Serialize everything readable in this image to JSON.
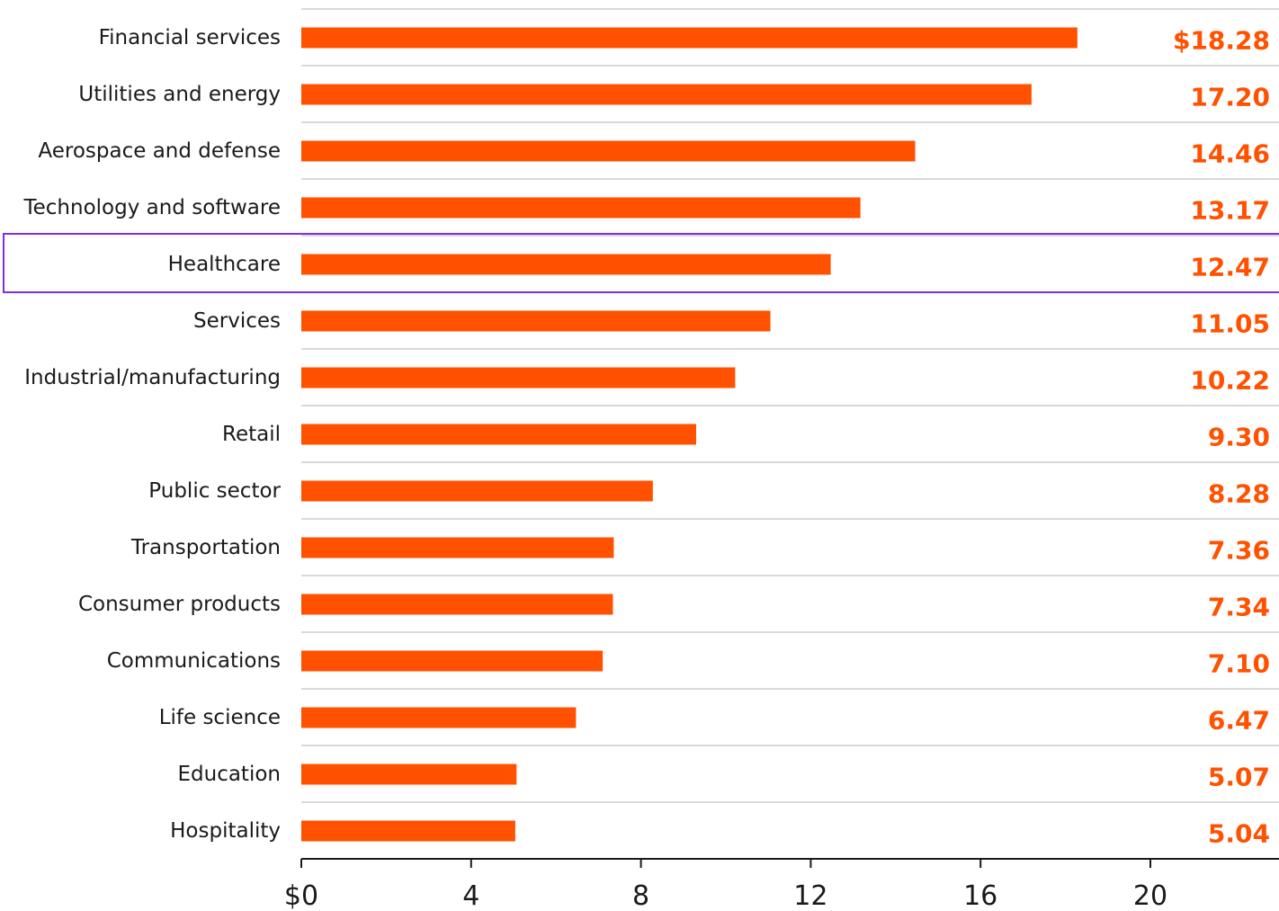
{
  "chart_data": {
    "type": "bar",
    "orientation": "horizontal",
    "categories": [
      "Financial services",
      "Utilities and energy",
      "Aerospace and defense",
      "Technology and software",
      "Healthcare",
      "Services",
      "Industrial/manufacturing",
      "Retail",
      "Public sector",
      "Transportation",
      "Consumer products",
      "Communications",
      "Life science",
      "Education",
      "Hospitality"
    ],
    "values": [
      18.28,
      17.2,
      14.46,
      13.17,
      12.47,
      11.05,
      10.22,
      9.3,
      8.28,
      7.36,
      7.34,
      7.1,
      6.47,
      5.07,
      5.04
    ],
    "value_labels": [
      "$18.28",
      "17.20",
      "14.46",
      "13.17",
      "12.47",
      "11.05",
      "10.22",
      "9.30",
      "8.28",
      "7.36",
      "7.34",
      "7.10",
      "6.47",
      "5.07",
      "5.04"
    ],
    "x_ticks": [
      0,
      4,
      8,
      12,
      16,
      20
    ],
    "x_tick_labels": [
      "$0",
      "4",
      "8",
      "12",
      "16",
      "20"
    ],
    "xlim": [
      0,
      23
    ],
    "highlighted_category": "Healthcare",
    "title": "",
    "xlabel": "",
    "ylabel": "",
    "grid": "horizontal row separators",
    "legend": "none"
  },
  "colors": {
    "bar": "#ff5100",
    "value_label": "#ff5100",
    "category_text": "#1a1a1a",
    "separator": "#d9d9d9",
    "axis": "#1a1a1a",
    "highlight_border": "#7f2fe0"
  }
}
